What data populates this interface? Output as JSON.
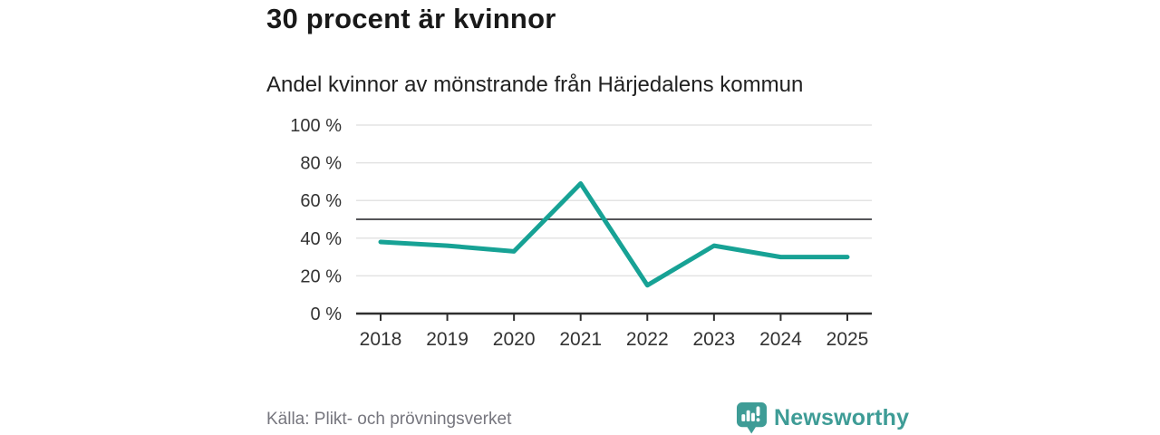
{
  "header": {
    "title": "30 procent är kvinnor",
    "subtitle": "Andel kvinnor av mönstrande från Härjedalens kommun"
  },
  "chart_data": {
    "type": "line",
    "title": "Andel kvinnor av mönstrande från Härjedalens kommun",
    "xlabel": "",
    "ylabel": "",
    "x": [
      "2018",
      "2019",
      "2020",
      "2021",
      "2022",
      "2023",
      "2024",
      "2025"
    ],
    "series": [
      {
        "name": "Andel kvinnor av mönstrande",
        "values": [
          38,
          36,
          33,
          69,
          15,
          36,
          30,
          30
        ]
      }
    ],
    "ylim": [
      0,
      100
    ],
    "yticks": [
      0,
      20,
      40,
      60,
      80,
      100
    ],
    "ytick_suffix": " %",
    "reference_line": 50,
    "grid": true,
    "legend_position": "none",
    "line_color": "#17a295",
    "reference_color": "#555558",
    "grid_color": "#e3e3e3",
    "axis_color": "#2e2e2e",
    "tick_label_color": "#333333"
  },
  "footer": {
    "source": "Källa: Plikt- och prövningsverket",
    "brand": "Newsworthy",
    "brand_color": "#3e9c96"
  }
}
